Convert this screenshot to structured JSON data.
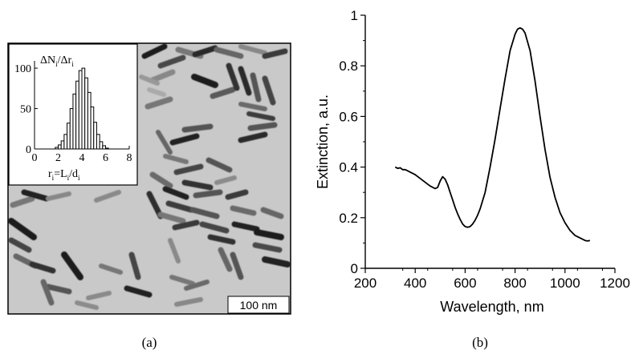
{
  "panel_a": {
    "caption": "(a)",
    "scale_bar_label": "100 nm",
    "inset": {
      "ylabel": "ΔN",
      "ylabel_sub": "i",
      "ylabel_mid": "/Δr",
      "ylabel_sub2": "i",
      "xlabel_r": "r",
      "xlabel_r_sub": "i",
      "xlabel_eq": "=L",
      "xlabel_L_sub": "i",
      "xlabel_div": "/d",
      "xlabel_d_sub": "i"
    }
  },
  "panel_b": {
    "caption": "(b)"
  },
  "chart_data": [
    {
      "type": "line",
      "title": "",
      "xlabel": "Wavelength, nm",
      "ylabel": "Extinction, a.u.",
      "xlim": [
        200,
        1200
      ],
      "ylim": [
        0,
        1
      ],
      "xticks": [
        200,
        400,
        600,
        800,
        1000,
        1200
      ],
      "yticks": [
        0,
        0.2,
        0.4,
        0.6,
        0.8,
        1
      ],
      "ytick_labels": [
        "0",
        "0.2",
        "0.4",
        "0.6",
        "0.8",
        "1"
      ],
      "grid": false,
      "series": [
        {
          "x": [
            320,
            330,
            340,
            350,
            360,
            380,
            400,
            420,
            440,
            460,
            480,
            490,
            500,
            510,
            520,
            530,
            540,
            550,
            560,
            570,
            580,
            590,
            600,
            610,
            620,
            630,
            640,
            650,
            660,
            680,
            700,
            720,
            740,
            760,
            780,
            800,
            810,
            820,
            830,
            840,
            860,
            880,
            900,
            920,
            940,
            960,
            980,
            1000,
            1020,
            1040,
            1060,
            1080,
            1090,
            1100
          ],
          "y": [
            0.4,
            0.395,
            0.397,
            0.39,
            0.39,
            0.38,
            0.37,
            0.355,
            0.34,
            0.325,
            0.315,
            0.32,
            0.345,
            0.362,
            0.352,
            0.33,
            0.3,
            0.27,
            0.24,
            0.215,
            0.193,
            0.175,
            0.165,
            0.162,
            0.165,
            0.175,
            0.19,
            0.21,
            0.235,
            0.3,
            0.4,
            0.51,
            0.63,
            0.75,
            0.86,
            0.925,
            0.945,
            0.95,
            0.945,
            0.93,
            0.86,
            0.74,
            0.6,
            0.47,
            0.36,
            0.28,
            0.22,
            0.18,
            0.15,
            0.13,
            0.12,
            0.11,
            0.108,
            0.11
          ],
          "color": "#000000"
        }
      ]
    },
    {
      "type": "bar",
      "title": "",
      "xlim": [
        0,
        8
      ],
      "ylim": [
        0,
        110
      ],
      "xticks": [
        0,
        2,
        4,
        6,
        8
      ],
      "yticks": [
        0,
        50,
        100
      ],
      "bin_width": 0.25,
      "bin_starts": [
        1.75,
        2.0,
        2.25,
        2.5,
        2.75,
        3.0,
        3.25,
        3.5,
        3.75,
        4.0,
        4.25,
        4.5,
        4.75,
        5.0,
        5.25,
        5.5,
        5.75,
        6.0
      ],
      "values": [
        2,
        5,
        10,
        18,
        32,
        50,
        68,
        84,
        97,
        100,
        88,
        70,
        52,
        33,
        18,
        9,
        4,
        1
      ]
    }
  ]
}
